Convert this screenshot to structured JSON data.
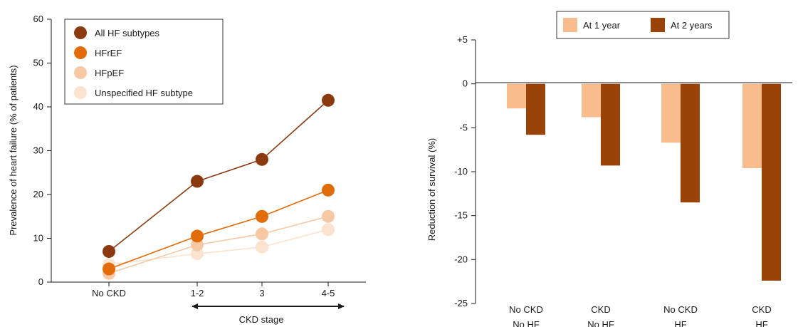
{
  "chart_data": [
    {
      "type": "line",
      "title": "",
      "xlabel": "CKD stage",
      "ylabel": "Prevalence of heart failure (% of patients)",
      "categories": [
        "No CKD",
        "1-2",
        "3",
        "4-5"
      ],
      "ylim": [
        0,
        60
      ],
      "yticks": [
        "0",
        "10",
        "20",
        "30",
        "40",
        "50",
        "60"
      ],
      "grid": false,
      "legend_position": "top-left",
      "series": [
        {
          "name": "All HF subtypes",
          "color": "#8B3A0F",
          "values": [
            7,
            23,
            28,
            41.5
          ]
        },
        {
          "name": "HFrEF",
          "color": "#E36C0A",
          "values": [
            3,
            10.5,
            15,
            21
          ]
        },
        {
          "name": "HFpEF",
          "color": "#F6C9A4",
          "values": [
            2,
            8.5,
            11,
            15
          ]
        },
        {
          "name": "Unspecified HF subtype",
          "color": "#FBE3D0",
          "values": [
            4,
            6.5,
            8,
            12
          ]
        }
      ]
    },
    {
      "type": "bar",
      "title": "",
      "xlabel": "",
      "ylabel": "Reduction of survival (%)",
      "categories": [
        [
          "No CKD",
          "No HF"
        ],
        [
          "CKD",
          "No HF"
        ],
        [
          "No CKD",
          "HF"
        ],
        [
          "CKD",
          "HF"
        ]
      ],
      "ylim": [
        -25,
        5
      ],
      "yticks": [
        "+5",
        "0",
        "-5",
        "-10",
        "-15",
        "-20",
        "-25"
      ],
      "grid": false,
      "legend_position": "top",
      "series": [
        {
          "name": "At 1 year",
          "color": "#F9BD8D",
          "values": [
            -2.8,
            -3.8,
            -6.7,
            -9.6
          ]
        },
        {
          "name": "At 2 years",
          "color": "#9A4309",
          "values": [
            -5.8,
            -9.3,
            -13.5,
            -22.4
          ]
        }
      ]
    }
  ]
}
